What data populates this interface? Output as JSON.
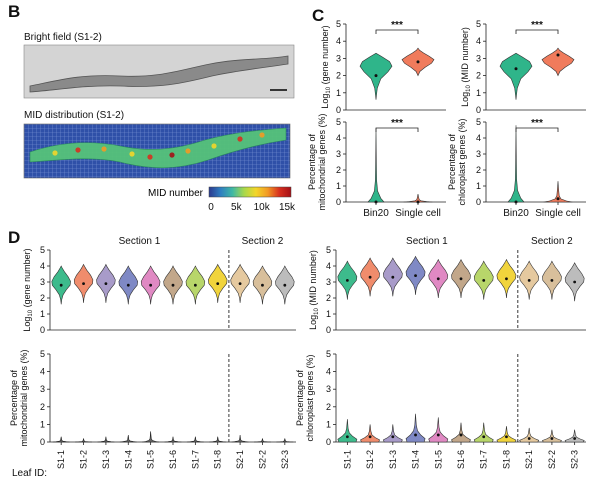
{
  "panels": {
    "B": {
      "label": "B",
      "bright_field_title": "Bright field (S1-2)",
      "mid_distribution_title": "MID distribution (S1-2)",
      "colorbar_title": "MID number",
      "colorbar_ticks": [
        "0",
        "5k",
        "10k",
        "15k"
      ],
      "colorbar_colors": [
        "#2b3a8f",
        "#2f7fc1",
        "#3fb8a4",
        "#a8d84b",
        "#f2d629",
        "#f29a24",
        "#d7301f",
        "#a40f16"
      ]
    },
    "C": {
      "label": "C"
    },
    "D": {
      "label": "D"
    }
  },
  "chart_data": [
    {
      "id": "C-gene-number",
      "type": "violin",
      "categories": [
        "Bin20",
        "Single cell"
      ],
      "ylabel_main": "Log",
      "ylabel_sub": "10",
      "ylabel_rest": " (gene number)",
      "yticks": [
        "0",
        "1",
        "2",
        "3",
        "4",
        "5"
      ],
      "ylim": [
        0,
        5
      ],
      "series": [
        {
          "category": "Bin20",
          "median": 2.0,
          "color": "#2fb58a"
        },
        {
          "category": "Single cell",
          "median": 2.8,
          "color": "#f07b5c"
        }
      ],
      "significance": "***"
    },
    {
      "id": "C-mid-number",
      "type": "violin",
      "categories": [
        "Bin20",
        "Single cell"
      ],
      "ylabel_main": "Log",
      "ylabel_sub": "10",
      "ylabel_rest": " (MID number)",
      "yticks": [
        "0",
        "1",
        "2",
        "3",
        "4",
        "5"
      ],
      "ylim": [
        0,
        5
      ],
      "series": [
        {
          "category": "Bin20",
          "median": 2.4,
          "color": "#2fb58a"
        },
        {
          "category": "Single cell",
          "median": 3.2,
          "color": "#f07b5c"
        }
      ],
      "significance": "***"
    },
    {
      "id": "C-mito",
      "type": "violin",
      "categories": [
        "Bin20",
        "Single cell"
      ],
      "xticklabels": [
        "Bin20",
        "Single cell"
      ],
      "ylabel_line1": "Percentage of",
      "ylabel_line2": "mitochondrial genes (%)",
      "yticks": [
        "0",
        "1",
        "2",
        "3",
        "4",
        "5"
      ],
      "ylim": [
        0,
        5
      ],
      "series": [
        {
          "category": "Bin20",
          "median": 0.0,
          "max": 4.6,
          "color": "#2fb58a"
        },
        {
          "category": "Single cell",
          "median": 0.0,
          "max": 0.5,
          "color": "#f07b5c"
        }
      ],
      "significance": "***"
    },
    {
      "id": "C-chloro",
      "type": "violin",
      "categories": [
        "Bin20",
        "Single cell"
      ],
      "xticklabels": [
        "Bin20",
        "Single cell"
      ],
      "ylabel_line1": "Percentage of",
      "ylabel_line2": "chloroplast genes (%)",
      "yticks": [
        "0",
        "1",
        "2",
        "3",
        "4",
        "5"
      ],
      "ylim": [
        0,
        5
      ],
      "series": [
        {
          "category": "Bin20",
          "median": 0.0,
          "max": 4.8,
          "color": "#2fb58a"
        },
        {
          "category": "Single cell",
          "median": 0.2,
          "max": 1.3,
          "color": "#f07b5c"
        }
      ],
      "significance": "***"
    },
    {
      "id": "D-gene-number",
      "type": "violin",
      "section_labels": [
        "Section 1",
        "Section 2"
      ],
      "categories": [
        "S1-1",
        "S1-2",
        "S1-3",
        "S1-4",
        "S1-5",
        "S1-6",
        "S1-7",
        "S1-8",
        "S2-1",
        "S2-2",
        "S2-3"
      ],
      "ylabel_main": "Log",
      "ylabel_sub": "10",
      "ylabel_rest": " (gene number)",
      "yticks": [
        "0",
        "1",
        "2",
        "3",
        "4",
        "5"
      ],
      "ylim": [
        0,
        5
      ],
      "medians": [
        2.8,
        2.9,
        2.9,
        2.8,
        2.8,
        2.8,
        2.8,
        2.9,
        2.9,
        2.8,
        2.8
      ],
      "colors": [
        "#3dbb8c",
        "#f08c6c",
        "#a89bc9",
        "#7f89c5",
        "#e089c3",
        "#c2a78a",
        "#b8d66a",
        "#f1d43c",
        "#e5c99f",
        "#d8bf9b",
        "#bcbcbc"
      ]
    },
    {
      "id": "D-mito",
      "type": "violin",
      "categories": [
        "S1-1",
        "S1-2",
        "S1-3",
        "S1-4",
        "S1-5",
        "S1-6",
        "S1-7",
        "S1-8",
        "S2-1",
        "S2-2",
        "S2-3"
      ],
      "ylabel_line1": "Percentage of",
      "ylabel_line2": "mitochondrial genes (%)",
      "yticks": [
        "0",
        "1",
        "2",
        "3",
        "4",
        "5"
      ],
      "ylim": [
        0,
        5
      ],
      "maxes": [
        0.3,
        0.2,
        0.3,
        0.4,
        0.6,
        0.3,
        0.3,
        0.3,
        0.4,
        0.2,
        0.2
      ],
      "xlabel": "Leaf ID:"
    },
    {
      "id": "D-mid-number",
      "type": "violin",
      "section_labels": [
        "Section 1",
        "Section 2"
      ],
      "categories": [
        "S1-1",
        "S1-2",
        "S1-3",
        "S1-4",
        "S1-5",
        "S1-6",
        "S1-7",
        "S1-8",
        "S2-1",
        "S2-2",
        "S2-3"
      ],
      "ylabel_main": "Log",
      "ylabel_sub": "10",
      "ylabel_rest": " (MID number)",
      "yticks": [
        "0",
        "1",
        "2",
        "3",
        "4",
        "5"
      ],
      "ylim": [
        0,
        5
      ],
      "medians": [
        3.1,
        3.3,
        3.3,
        3.4,
        3.2,
        3.2,
        3.1,
        3.2,
        3.1,
        3.1,
        3.0
      ],
      "colors": [
        "#3dbb8c",
        "#f08c6c",
        "#a89bc9",
        "#7f89c5",
        "#e089c3",
        "#c2a78a",
        "#b8d66a",
        "#f1d43c",
        "#e5c99f",
        "#d8bf9b",
        "#bcbcbc"
      ]
    },
    {
      "id": "D-chloro",
      "type": "violin",
      "categories": [
        "S1-1",
        "S1-2",
        "S1-3",
        "S1-4",
        "S1-5",
        "S1-6",
        "S1-7",
        "S1-8",
        "S2-1",
        "S2-2",
        "S2-3"
      ],
      "ylabel_line1": "Percentage of",
      "ylabel_line2": "chloroplast genes (%)",
      "yticks": [
        "0",
        "1",
        "2",
        "3",
        "4",
        "5"
      ],
      "ylim": [
        0,
        5
      ],
      "medians": [
        0.3,
        0.3,
        0.3,
        0.4,
        0.4,
        0.4,
        0.3,
        0.3,
        0.2,
        0.2,
        0.2
      ],
      "maxes": [
        1.3,
        1.0,
        1.0,
        1.6,
        1.4,
        1.1,
        1.1,
        0.9,
        0.8,
        0.7,
        0.7
      ]
    }
  ]
}
